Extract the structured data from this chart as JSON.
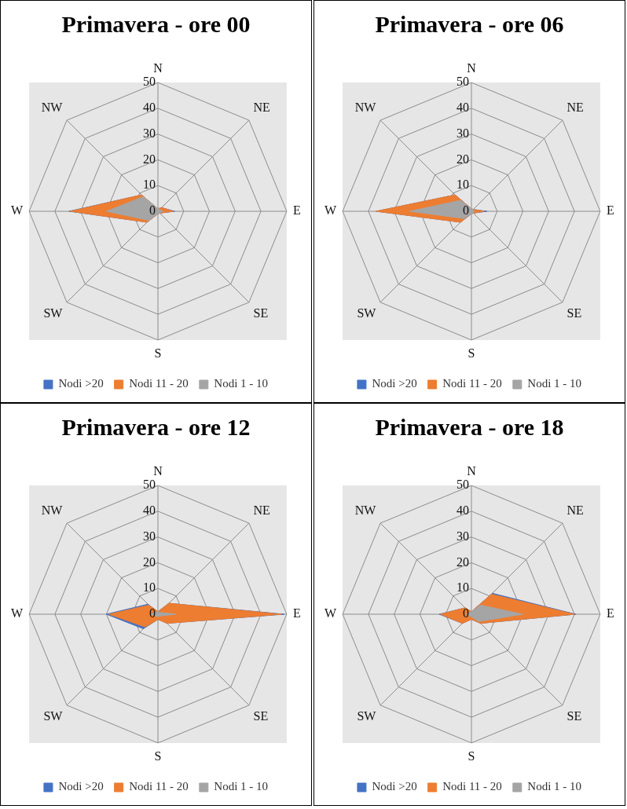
{
  "chart_data": [
    {
      "type": "radar",
      "title": "Primavera - ore 00",
      "categories": [
        "N",
        "NE",
        "E",
        "SE",
        "S",
        "SW",
        "W",
        "NW"
      ],
      "ylim": [
        0,
        50
      ],
      "yticks": [
        0,
        10,
        20,
        30,
        40,
        50
      ],
      "grid": true,
      "legend": "bottom",
      "marker": "none",
      "series": [
        {
          "name": "Nodi >20",
          "color": "#4472c4",
          "values": [
            1,
            2,
            6.5,
            1,
            1,
            6,
            34.5,
            9
          ]
        },
        {
          "name": "Nodi 11 - 20",
          "color": "#ed7d31",
          "values": [
            1,
            2,
            6,
            1,
            1,
            6,
            34,
            9
          ]
        },
        {
          "name": "Nodi 1 - 10",
          "color": "#a5a5a5",
          "values": [
            1,
            1,
            2,
            1,
            1,
            5,
            20,
            8
          ]
        }
      ]
    },
    {
      "type": "radar",
      "title": "Primavera - ore 06",
      "categories": [
        "N",
        "NE",
        "E",
        "SE",
        "S",
        "SW",
        "W",
        "NW"
      ],
      "ylim": [
        0,
        50
      ],
      "yticks": [
        0,
        10,
        20,
        30,
        40,
        50
      ],
      "grid": true,
      "legend": "bottom",
      "marker": "none",
      "series": [
        {
          "name": "Nodi >20",
          "color": "#4472c4",
          "values": [
            1,
            1,
            6,
            1,
            1,
            6,
            37,
            9
          ]
        },
        {
          "name": "Nodi 11 - 20",
          "color": "#ed7d31",
          "values": [
            1,
            1,
            5,
            1,
            1,
            6,
            37,
            9
          ]
        },
        {
          "name": "Nodi 1 - 10",
          "color": "#a5a5a5",
          "values": [
            1,
            1,
            1,
            1,
            1,
            4,
            24,
            6
          ]
        }
      ]
    },
    {
      "type": "radar",
      "title": "Primavera - ore 12",
      "categories": [
        "N",
        "NE",
        "E",
        "SE",
        "S",
        "SW",
        "W",
        "NW"
      ],
      "ylim": [
        0,
        50
      ],
      "yticks": [
        0,
        10,
        20,
        30,
        40,
        50
      ],
      "grid": true,
      "legend": "bottom",
      "marker": "none",
      "series": [
        {
          "name": "Nodi >20",
          "color": "#4472c4",
          "values": [
            1,
            6,
            49,
            5,
            2,
            8,
            20,
            5.5
          ]
        },
        {
          "name": "Nodi 11 - 20",
          "color": "#ed7d31",
          "values": [
            1,
            6,
            48,
            5,
            2,
            7,
            19,
            5
          ]
        },
        {
          "name": "Nodi 1 - 10",
          "color": "#a5a5a5",
          "values": [
            1,
            1,
            7,
            1,
            1,
            1,
            3,
            1
          ]
        }
      ]
    },
    {
      "type": "radar",
      "title": "Primavera - ore 18",
      "categories": [
        "N",
        "NE",
        "E",
        "SE",
        "S",
        "SW",
        "W",
        "NW"
      ],
      "ylim": [
        0,
        50
      ],
      "yticks": [
        0,
        10,
        20,
        30,
        40,
        50
      ],
      "grid": true,
      "legend": "bottom",
      "marker": "none",
      "series": [
        {
          "name": "Nodi >20",
          "color": "#4472c4",
          "values": [
            1,
            11.5,
            40.5,
            5,
            2,
            5,
            12.5,
            3.5
          ]
        },
        {
          "name": "Nodi 11 - 20",
          "color": "#ed7d31",
          "values": [
            1,
            11,
            40,
            5,
            2,
            5,
            12,
            3.5
          ]
        },
        {
          "name": "Nodi 1 - 10",
          "color": "#a5a5a5",
          "values": [
            1,
            5,
            20,
            4,
            1,
            1,
            2,
            1
          ]
        }
      ]
    }
  ]
}
